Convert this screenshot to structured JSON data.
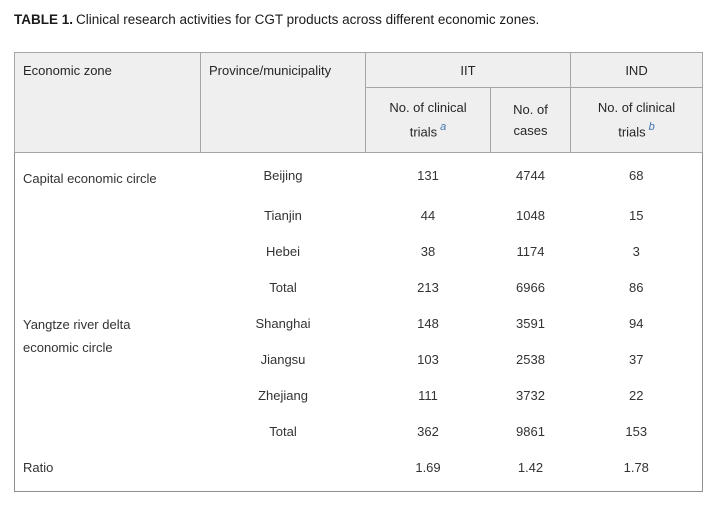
{
  "title": {
    "label": "TABLE 1.",
    "text": "Clinical research activities for CGT products across different economic zones."
  },
  "colors": {
    "header_bg": "#efefef",
    "table_border": "#8f8f8f",
    "header_cell_border": "#a6a6a6",
    "body_text": "#333333",
    "footnote_marker_blue": "#4173b3"
  },
  "table": {
    "group_headers": {
      "economic_zone": "Economic zone",
      "province": "Province/municipality",
      "iit": "IIT",
      "ind": "IND"
    },
    "sub_headers": {
      "iit_trials": {
        "line1": "No. of clinical",
        "line2": "trials",
        "sup": "a"
      },
      "iit_cases": {
        "line1": "No. of",
        "line2": "cases"
      },
      "ind_trials": {
        "line1": "No. of clinical",
        "line2": "trials",
        "sup": "b"
      }
    },
    "groups": [
      {
        "zone_line1": "Capital economic circle",
        "zone_line2": "",
        "rows": [
          {
            "province": "Beijing",
            "iit_trials": "131",
            "iit_cases": "4744",
            "ind_trials": "68"
          },
          {
            "province": "Tianjin",
            "iit_trials": "44",
            "iit_cases": "1048",
            "ind_trials": "15"
          },
          {
            "province": "Hebei",
            "iit_trials": "38",
            "iit_cases": "1174",
            "ind_trials": "3"
          },
          {
            "province": "Total",
            "iit_trials": "213",
            "iit_cases": "6966",
            "ind_trials": "86"
          }
        ]
      },
      {
        "zone_line1": "Yangtze river delta",
        "zone_line2": "economic circle",
        "rows": [
          {
            "province": "Shanghai",
            "iit_trials": "148",
            "iit_cases": "3591",
            "ind_trials": "94"
          },
          {
            "province": "Jiangsu",
            "iit_trials": "103",
            "iit_cases": "2538",
            "ind_trials": "37"
          },
          {
            "province": "Zhejiang",
            "iit_trials": "111",
            "iit_cases": "3732",
            "ind_trials": "22"
          },
          {
            "province": "Total",
            "iit_trials": "362",
            "iit_cases": "9861",
            "ind_trials": "153"
          }
        ]
      }
    ],
    "ratio_row": {
      "label": "Ratio",
      "province": "",
      "iit_trials": "1.69",
      "iit_cases": "1.42",
      "ind_trials": "1.78"
    }
  }
}
